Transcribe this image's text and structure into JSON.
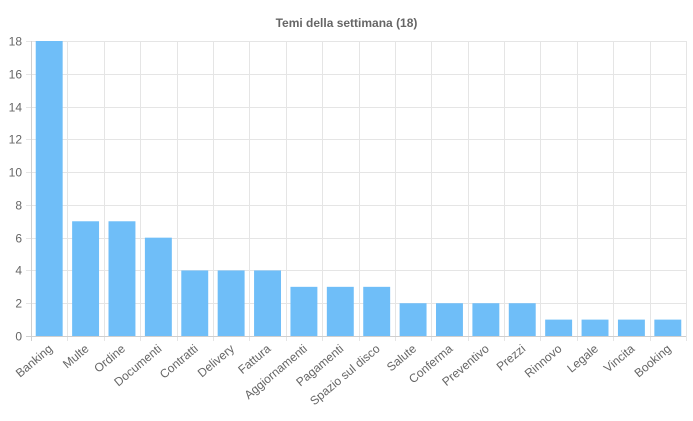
{
  "chart_data": {
    "type": "bar",
    "title": "Temi della settimana (18)",
    "xlabel": "",
    "ylabel": "",
    "categories": [
      "Banking",
      "Multe",
      "Ordine",
      "Documenti",
      "Contratti",
      "Delivery",
      "Fattura",
      "Aggiornamenti",
      "Pagamenti",
      "Spazio sul disco",
      "Salute",
      "Conferma",
      "Preventivo",
      "Prezzi",
      "Rinnovo",
      "Legale",
      "Vincita",
      "Booking"
    ],
    "values": [
      18,
      7,
      7,
      6,
      4,
      4,
      4,
      3,
      3,
      3,
      2,
      2,
      2,
      2,
      1,
      1,
      1,
      1
    ],
    "ylim": [
      0,
      18
    ],
    "yticks": [
      0,
      2,
      4,
      6,
      8,
      10,
      12,
      14,
      16,
      18
    ],
    "grid": true,
    "legend": "none",
    "colors": {
      "bar": "#6fbef8",
      "grid": "#e5e5e5",
      "text": "#666666"
    }
  }
}
